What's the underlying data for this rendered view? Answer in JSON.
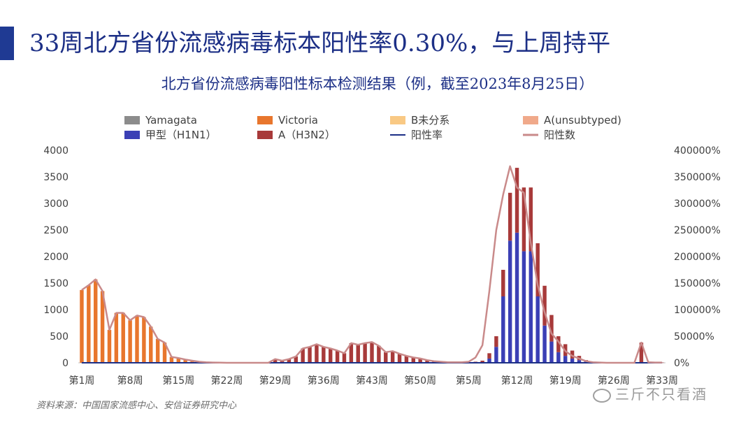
{
  "header": {
    "headline": "33周北方省份流感病毒标本阳性率0.30%，与上周持平",
    "source_note": "资料来源：中国国家流感中心、安信证券研究中心",
    "watermark": "三斤不只看酒"
  },
  "colors": {
    "accent": "#1f3a93",
    "title": "#1c2f86"
  },
  "chart_data": {
    "type": "bar",
    "title": "北方省份流感病毒阳性标本检测结果（例，截至2023年8月25日）",
    "legend_position": "top",
    "stacked": true,
    "categories": [
      "第1周",
      "第2周",
      "第3周",
      "第4周",
      "第5周",
      "第6周",
      "第7周",
      "第8周",
      "第9周",
      "第10周",
      "第11周",
      "第12周",
      "第13周",
      "第14周",
      "第15周",
      "第16周",
      "第17周",
      "第18周",
      "第19周",
      "第20周",
      "第21周",
      "第22周",
      "第23周",
      "第24周",
      "第25周",
      "第26周",
      "第27周",
      "第28周",
      "第29周",
      "第30周",
      "第31周",
      "第32周",
      "第33周",
      "第34周",
      "第35周",
      "第36周",
      "第37周",
      "第38周",
      "第39周",
      "第40周",
      "第41周",
      "第42周",
      "第43周",
      "第44周",
      "第45周",
      "第46周",
      "第47周",
      "第48周",
      "第49周",
      "第50周",
      "第51周",
      "第52周",
      "第1周",
      "第2周",
      "第3周",
      "第4周",
      "第5周",
      "第6周",
      "第7周",
      "第8周",
      "第9周",
      "第10周",
      "第11周",
      "第12周",
      "第13周",
      "第14周",
      "第15周",
      "第16周",
      "第17周",
      "第18周",
      "第19周",
      "第20周",
      "第21周",
      "第22周",
      "第23周",
      "第24周",
      "第25周",
      "第26周",
      "第27周",
      "第28周",
      "第29周",
      "第30周",
      "第31周",
      "第32周",
      "第33周"
    ],
    "x_tick_labels": [
      "第1周",
      "第8周",
      "第15周",
      "第22周",
      "第29周",
      "第36周",
      "第43周",
      "第50周",
      "第5周",
      "第12周",
      "第19周",
      "第26周",
      "第33周"
    ],
    "x_tick_index": [
      0,
      7,
      14,
      21,
      28,
      35,
      42,
      49,
      56,
      63,
      70,
      77,
      84
    ],
    "y_left": {
      "ticks": [
        "0",
        "500",
        "1000",
        "1500",
        "2000",
        "2500",
        "3000",
        "3500",
        "4000"
      ],
      "min": 0,
      "max": 4000
    },
    "y_right": {
      "ticks": [
        "0%",
        "50000%",
        "100000%",
        "150000%",
        "200000%",
        "250000%",
        "300000%",
        "350000%",
        "400000%"
      ],
      "min": 0,
      "max": 400000
    },
    "series": [
      {
        "name": "Yamagata",
        "kind": "bar",
        "axis": "left",
        "color": "#8c8c8c",
        "values": [
          0,
          0,
          0,
          0,
          0,
          0,
          0,
          0,
          0,
          0,
          0,
          0,
          0,
          0,
          0,
          0,
          0,
          0,
          0,
          0,
          0,
          0,
          0,
          0,
          0,
          0,
          0,
          0,
          0,
          0,
          0,
          0,
          0,
          0,
          0,
          0,
          0,
          0,
          0,
          0,
          0,
          0,
          0,
          0,
          0,
          0,
          0,
          0,
          0,
          0,
          0,
          0,
          0,
          0,
          0,
          0,
          0,
          0,
          0,
          0,
          0,
          0,
          0,
          0,
          0,
          0,
          0,
          0,
          0,
          0,
          0,
          0,
          0,
          0,
          0,
          0,
          0,
          0,
          0,
          0,
          0,
          0,
          0,
          0,
          0
        ]
      },
      {
        "name": "Victoria",
        "kind": "bar",
        "axis": "left",
        "color": "#e8762d",
        "values": [
          1370,
          1460,
          1570,
          1350,
          620,
          940,
          940,
          800,
          890,
          860,
          680,
          450,
          380,
          110,
          90,
          60,
          40,
          20,
          10,
          5,
          3,
          0,
          0,
          0,
          0,
          0,
          0,
          0,
          0,
          0,
          0,
          0,
          0,
          0,
          0,
          0,
          0,
          0,
          0,
          0,
          0,
          0,
          0,
          0,
          0,
          0,
          0,
          0,
          0,
          0,
          0,
          0,
          0,
          0,
          0,
          0,
          0,
          0,
          0,
          0,
          0,
          0,
          0,
          0,
          0,
          0,
          0,
          0,
          0,
          0,
          0,
          0,
          0,
          0,
          0,
          0,
          0,
          0,
          0,
          0,
          0,
          0,
          0,
          0,
          0
        ]
      },
      {
        "name": "B未分系",
        "kind": "bar",
        "axis": "left",
        "color": "#f9c984",
        "values": [
          0,
          0,
          0,
          0,
          0,
          0,
          0,
          0,
          0,
          0,
          0,
          0,
          0,
          0,
          0,
          0,
          0,
          0,
          0,
          0,
          0,
          0,
          0,
          0,
          0,
          0,
          0,
          0,
          0,
          0,
          0,
          0,
          0,
          0,
          0,
          0,
          0,
          0,
          0,
          0,
          0,
          0,
          0,
          0,
          0,
          0,
          0,
          0,
          0,
          0,
          0,
          0,
          0,
          0,
          0,
          0,
          0,
          0,
          0,
          0,
          0,
          0,
          0,
          0,
          0,
          0,
          0,
          0,
          0,
          0,
          0,
          0,
          0,
          0,
          0,
          0,
          0,
          0,
          0,
          0,
          0,
          0,
          0,
          0,
          0
        ]
      },
      {
        "name": "A(unsubtyped)",
        "kind": "bar",
        "axis": "left",
        "color": "#f0a98a",
        "values": [
          0,
          0,
          0,
          0,
          0,
          0,
          0,
          0,
          0,
          0,
          0,
          0,
          0,
          0,
          0,
          0,
          0,
          0,
          0,
          0,
          0,
          0,
          0,
          0,
          0,
          0,
          0,
          0,
          0,
          0,
          0,
          0,
          0,
          0,
          0,
          0,
          0,
          0,
          0,
          0,
          0,
          0,
          0,
          0,
          0,
          0,
          0,
          0,
          0,
          0,
          0,
          0,
          0,
          0,
          0,
          0,
          0,
          0,
          0,
          0,
          0,
          0,
          0,
          0,
          0,
          0,
          0,
          0,
          0,
          0,
          0,
          0,
          0,
          0,
          0,
          0,
          0,
          0,
          0,
          0,
          0,
          0,
          0,
          0,
          0
        ]
      },
      {
        "name": "甲型（H1N1）",
        "kind": "bar",
        "axis": "left",
        "color": "#3b3fb5",
        "values": [
          0,
          0,
          0,
          0,
          0,
          0,
          0,
          0,
          0,
          0,
          0,
          0,
          0,
          0,
          0,
          0,
          0,
          0,
          0,
          0,
          0,
          0,
          0,
          0,
          0,
          0,
          0,
          0,
          0,
          0,
          0,
          0,
          0,
          0,
          0,
          0,
          0,
          0,
          0,
          0,
          0,
          0,
          0,
          0,
          0,
          0,
          0,
          0,
          0,
          0,
          0,
          0,
          0,
          0,
          0,
          0,
          0,
          0,
          10,
          80,
          300,
          1250,
          2300,
          2450,
          2100,
          2100,
          1250,
          700,
          400,
          200,
          130,
          80,
          50,
          20,
          10,
          5,
          0,
          0,
          0,
          0,
          0,
          0,
          0,
          0,
          0
        ]
      },
      {
        "name": "A（H3N2）",
        "kind": "bar",
        "axis": "left",
        "color": "#a83a3a",
        "values": [
          0,
          0,
          0,
          0,
          0,
          0,
          0,
          0,
          0,
          0,
          0,
          0,
          0,
          0,
          0,
          0,
          0,
          0,
          0,
          0,
          0,
          0,
          0,
          0,
          0,
          0,
          0,
          0,
          70,
          40,
          70,
          120,
          270,
          300,
          350,
          300,
          270,
          230,
          180,
          370,
          340,
          370,
          390,
          320,
          200,
          220,
          170,
          130,
          100,
          80,
          50,
          30,
          20,
          10,
          10,
          10,
          10,
          20,
          30,
          100,
          200,
          500,
          900,
          1220,
          1200,
          1200,
          1000,
          750,
          500,
          300,
          220,
          150,
          80,
          30,
          10,
          5,
          0,
          0,
          0,
          0,
          0,
          380,
          10,
          5,
          5
        ]
      },
      {
        "name": "阳性率",
        "kind": "line",
        "axis": "right",
        "color": "#1c2f86",
        "values": [
          5,
          5,
          5,
          5,
          4,
          5,
          5,
          5,
          5,
          5,
          4,
          4,
          3,
          2,
          1,
          1,
          1,
          0.5,
          0.3,
          0.2,
          0.1,
          0.1,
          0.1,
          0.1,
          0.1,
          0.1,
          0.1,
          0.1,
          0.5,
          0.3,
          0.5,
          1,
          2,
          2,
          2,
          2,
          2,
          1.5,
          1,
          2,
          2,
          2,
          2,
          2,
          1,
          1,
          1,
          1,
          1,
          0.5,
          0.3,
          0.2,
          0.1,
          0.1,
          0.1,
          0.1,
          0.1,
          0.2,
          0.3,
          1,
          2,
          4,
          9,
          17,
          23,
          22,
          21,
          16,
          9,
          5,
          3,
          2,
          1,
          0.5,
          0.3,
          0.1,
          0.1,
          0.1,
          0.1,
          0.1,
          0.1,
          0.3,
          0.3,
          0.3,
          0.3
        ]
      },
      {
        "name": "阳性数",
        "kind": "line",
        "axis": "left",
        "color": "#c98a8a",
        "values": [
          1370,
          1460,
          1570,
          1350,
          620,
          940,
          940,
          800,
          890,
          860,
          680,
          450,
          380,
          110,
          90,
          60,
          40,
          20,
          10,
          5,
          3,
          0,
          0,
          0,
          0,
          0,
          0,
          0,
          70,
          40,
          70,
          120,
          270,
          300,
          350,
          300,
          270,
          230,
          180,
          370,
          340,
          370,
          390,
          320,
          200,
          220,
          170,
          130,
          100,
          80,
          50,
          30,
          20,
          10,
          10,
          10,
          20,
          100,
          330,
          1350,
          2500,
          3170,
          3700,
          3300,
          3200,
          2260,
          1460,
          950,
          550,
          400,
          220,
          130,
          80,
          30,
          10,
          5,
          0,
          0,
          0,
          0,
          0,
          380,
          10,
          5,
          5
        ]
      }
    ]
  }
}
